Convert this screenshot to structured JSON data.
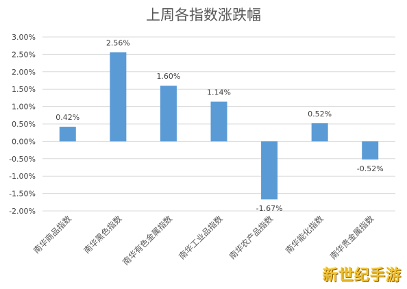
{
  "watermark": "新世纪手游",
  "chart_data": {
    "type": "bar",
    "title": "上周各指数涨跌幅",
    "categories": [
      "南华商品指数",
      "南华黑色指数",
      "南华有色金属指数",
      "南华工业品指数",
      "南华农产品指数",
      "南华能化指数",
      "南华贵金属指数"
    ],
    "values": [
      0.42,
      2.56,
      1.6,
      1.14,
      -1.67,
      0.52,
      -0.52
    ],
    "data_labels": [
      "0.42%",
      "2.56%",
      "1.60%",
      "1.14%",
      "-1.67%",
      "0.52%",
      "-0.52%"
    ],
    "yticks": [
      "3.00%",
      "2.50%",
      "2.00%",
      "1.50%",
      "1.00%",
      "0.50%",
      "0.00%",
      "-0.50%",
      "-1.00%",
      "-1.50%",
      "-2.00%"
    ],
    "ylim": [
      -2.0,
      3.0
    ],
    "xlabel": "",
    "ylabel": "",
    "grid": true,
    "legend": "none",
    "color": "#5b9bd5"
  }
}
